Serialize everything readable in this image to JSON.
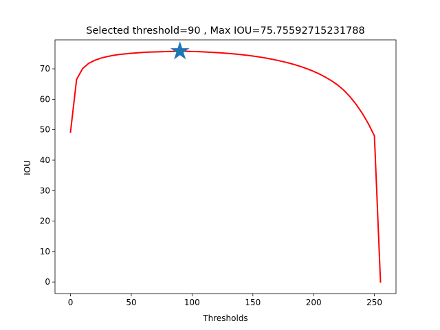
{
  "chart_data": {
    "type": "line",
    "title": "Selected threshold=90 , Max IOU=75.75592715231788",
    "xlabel": "Thresholds",
    "ylabel": "IOU",
    "xlim": [
      -12.75,
      267.75
    ],
    "ylim": [
      -3.8,
      79.5
    ],
    "xticks": [
      0,
      50,
      100,
      150,
      200,
      250
    ],
    "yticks": [
      0,
      10,
      20,
      30,
      40,
      50,
      60,
      70
    ],
    "grid": false,
    "series": [
      {
        "color": "#ff0000",
        "x": [
          0,
          5,
          10,
          15,
          20,
          25,
          30,
          35,
          40,
          45,
          50,
          55,
          60,
          65,
          70,
          75,
          80,
          85,
          90,
          95,
          100,
          105,
          110,
          115,
          120,
          125,
          130,
          135,
          140,
          145,
          150,
          155,
          160,
          165,
          170,
          175,
          180,
          185,
          190,
          195,
          200,
          205,
          210,
          215,
          220,
          225,
          230,
          235,
          240,
          245,
          250,
          255
        ],
        "y": [
          49.2,
          66.5,
          70.1,
          71.8,
          72.8,
          73.5,
          74.0,
          74.4,
          74.7,
          74.9,
          75.1,
          75.25,
          75.4,
          75.5,
          75.55,
          75.62,
          75.68,
          75.72,
          75.756,
          75.74,
          75.7,
          75.63,
          75.55,
          75.45,
          75.33,
          75.2,
          75.05,
          74.88,
          74.68,
          74.45,
          74.2,
          73.9,
          73.58,
          73.2,
          72.8,
          72.35,
          71.85,
          71.3,
          70.65,
          69.95,
          69.15,
          68.25,
          67.2,
          66.0,
          64.6,
          62.9,
          60.8,
          58.3,
          55.4,
          52.0,
          48.0,
          0.0
        ]
      }
    ],
    "marker": {
      "x": 90,
      "y": 75.75592715231788,
      "shape": "star",
      "color": "#1f77b4"
    }
  }
}
